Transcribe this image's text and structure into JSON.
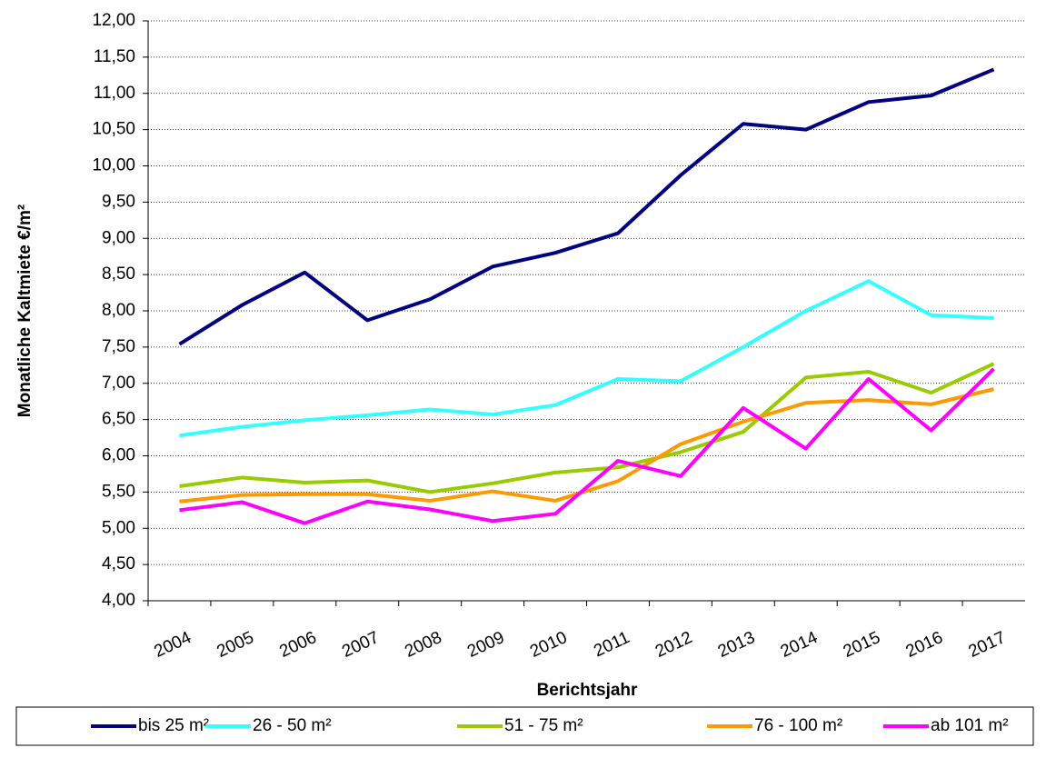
{
  "chart_data": {
    "type": "line",
    "x_label": "Berichtsjahr",
    "y_label": "Monatliche Kaltmiete €/m²",
    "categories": [
      "2004",
      "2005",
      "2006",
      "2007",
      "2008",
      "2009",
      "2010",
      "2011",
      "2012",
      "2013",
      "2014",
      "2015",
      "2016",
      "2017"
    ],
    "ylim": [
      4,
      12
    ],
    "yticks": [
      {
        "value": 4,
        "label": "4,00"
      },
      {
        "value": 4.5,
        "label": "4,50"
      },
      {
        "value": 5,
        "label": "5,00"
      },
      {
        "value": 5.5,
        "label": "5,50"
      },
      {
        "value": 6,
        "label": "6,00"
      },
      {
        "value": 6.5,
        "label": "6,50"
      },
      {
        "value": 7,
        "label": "7,00"
      },
      {
        "value": 7.5,
        "label": "7,50"
      },
      {
        "value": 8,
        "label": "8,00"
      },
      {
        "value": 8.5,
        "label": "8,50"
      },
      {
        "value": 9,
        "label": "9,00"
      },
      {
        "value": 9.5,
        "label": "9,50"
      },
      {
        "value": 10,
        "label": "10,00"
      },
      {
        "value": 10.5,
        "label": "10,50"
      },
      {
        "value": 11,
        "label": "11,00"
      },
      {
        "value": 11.5,
        "label": "11,50"
      },
      {
        "value": 12,
        "label": "12,00"
      }
    ],
    "grid": true,
    "legend": "bottom",
    "series": [
      {
        "name": "bis 25 m²",
        "color": "#000080",
        "values": [
          7.54,
          8.08,
          8.53,
          7.87,
          8.16,
          8.61,
          8.8,
          9.07,
          9.87,
          10.58,
          10.5,
          10.88,
          10.97,
          11.33
        ]
      },
      {
        "name": "26 - 50 m²",
        "color": "#33ffff",
        "values": [
          6.28,
          6.4,
          6.49,
          6.56,
          6.64,
          6.57,
          6.7,
          7.06,
          7.03,
          7.5,
          8.0,
          8.41,
          7.94,
          7.9
        ]
      },
      {
        "name": "51 - 75 m²",
        "color": "#99cc00",
        "values": [
          5.58,
          5.7,
          5.63,
          5.66,
          5.5,
          5.62,
          5.77,
          5.84,
          6.05,
          6.33,
          7.08,
          7.16,
          6.87,
          7.27
        ]
      },
      {
        "name": "76 - 100 m²",
        "color": "#ff9900",
        "values": [
          5.37,
          5.46,
          5.47,
          5.47,
          5.38,
          5.51,
          5.38,
          5.65,
          6.16,
          6.47,
          6.73,
          6.77,
          6.71,
          6.92
        ]
      },
      {
        "name": "ab 101 m²",
        "color": "#ff00ff",
        "values": [
          5.25,
          5.36,
          5.07,
          5.37,
          5.26,
          5.1,
          5.2,
          5.93,
          5.72,
          6.66,
          6.1,
          7.06,
          6.35,
          7.2
        ]
      }
    ]
  }
}
